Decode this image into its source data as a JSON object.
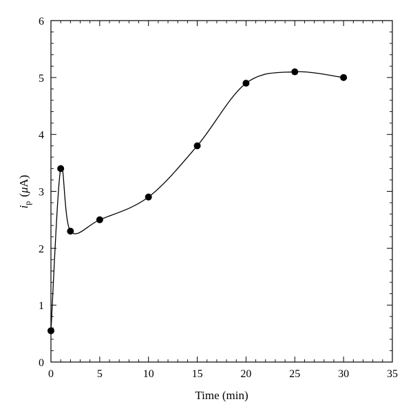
{
  "chart_data": {
    "type": "scatter",
    "title": "",
    "xlabel": "Time (min)",
    "ylabel": {
      "var": "i",
      "sub": "p",
      "unit_prefix": "(",
      "unit_mu": "μ",
      "unit_suffix": "A)"
    },
    "xlim": [
      0,
      35
    ],
    "ylim": [
      0,
      6
    ],
    "xticks": [
      0,
      5,
      10,
      15,
      20,
      25,
      30,
      35
    ],
    "yticks": [
      0,
      1,
      2,
      3,
      4,
      5,
      6
    ],
    "grid": false,
    "legend": "none",
    "series": [
      {
        "x": [
          0,
          1,
          2,
          5,
          10,
          15,
          20,
          25,
          30
        ],
        "y": [
          0.55,
          3.4,
          2.3,
          2.5,
          2.9,
          3.8,
          4.9,
          5.1,
          5.0
        ],
        "marker": "filled-circle",
        "line": "smooth",
        "color": "#000000"
      }
    ]
  }
}
